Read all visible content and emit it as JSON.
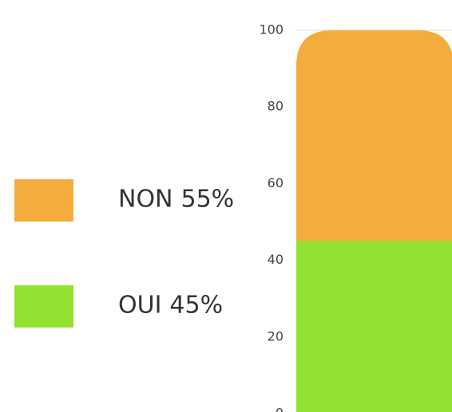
{
  "chart_data": {
    "type": "stacked-bar",
    "series": [
      {
        "name": "NON",
        "color": "#f4ac3f",
        "values": [
          55
        ],
        "value_labels": [
          "55%"
        ]
      },
      {
        "name": "OUI",
        "color": "#92e331",
        "values": [
          45
        ],
        "value_labels": [
          "45%"
        ]
      }
    ],
    "ylim": [
      0,
      100
    ],
    "yticks": [
      0,
      20,
      40,
      60,
      80,
      100
    ],
    "legend": "left"
  }
}
